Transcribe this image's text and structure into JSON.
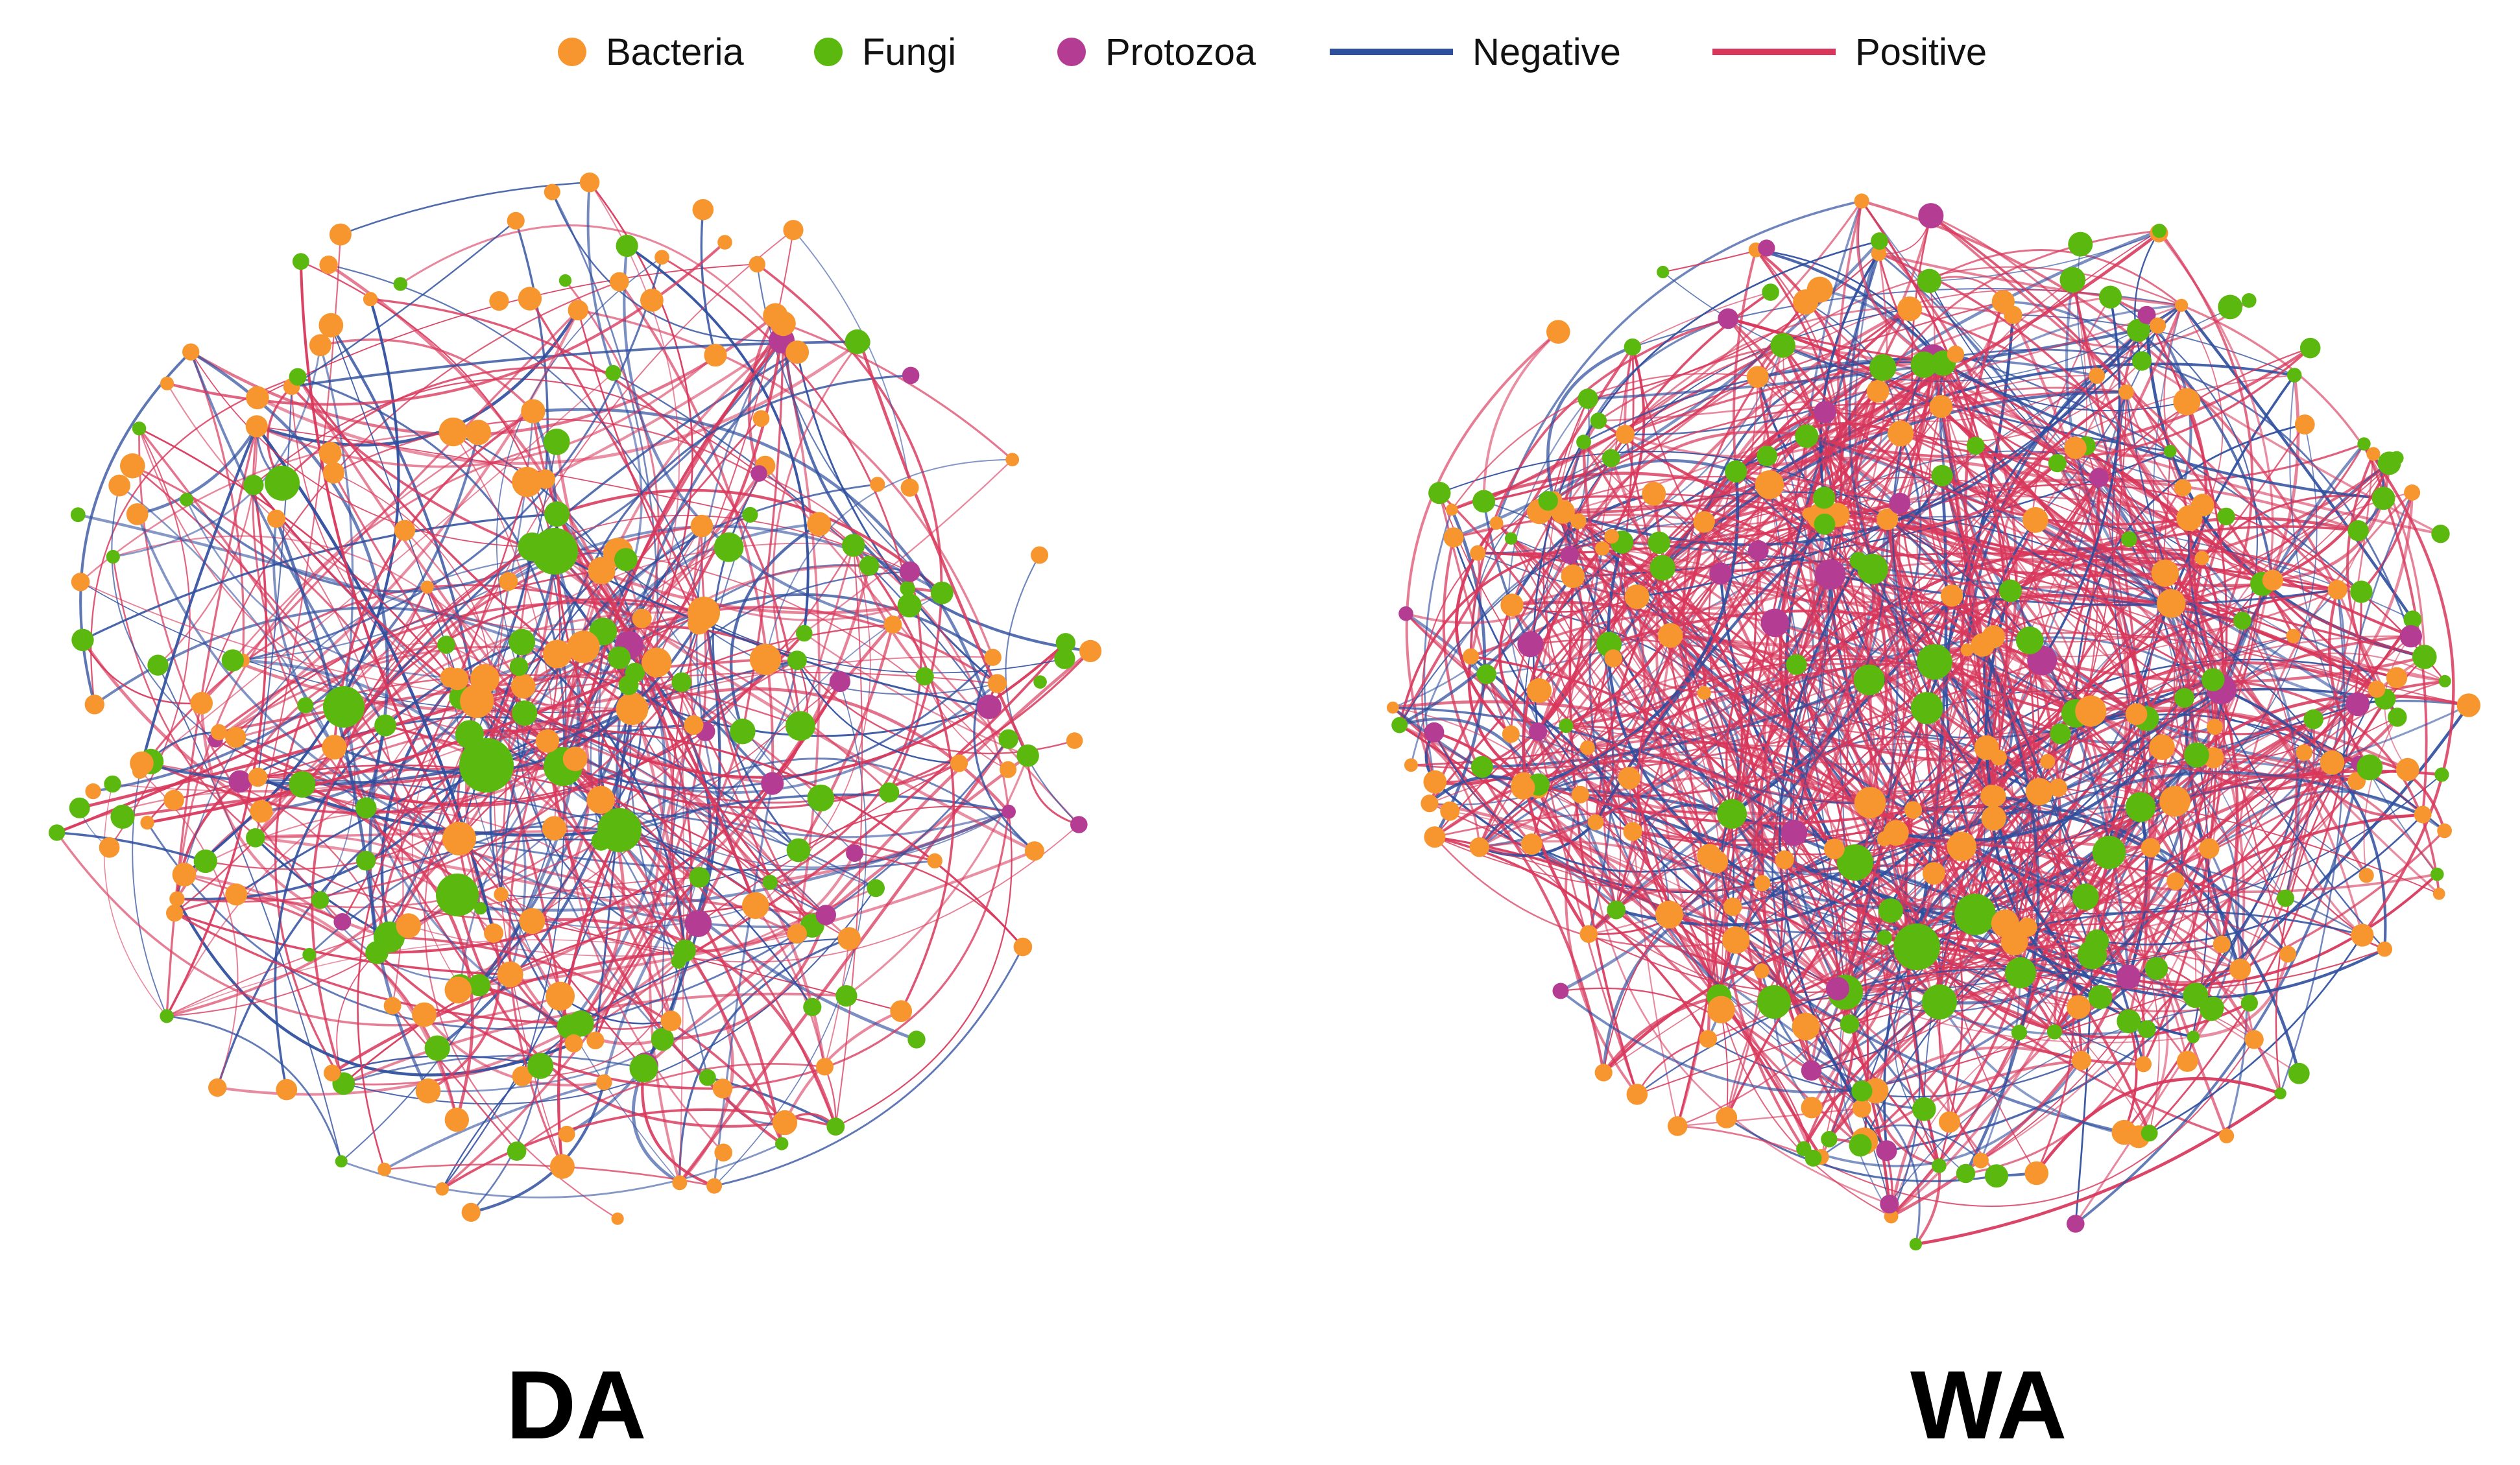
{
  "legend": {
    "node_types": [
      {
        "label": "Bacteria",
        "color": "#F7962F"
      },
      {
        "label": "Fungi",
        "color": "#5BB80E"
      },
      {
        "label": "Protozoa",
        "color": "#B43C92"
      }
    ],
    "edge_types": [
      {
        "label": "Negative",
        "color": "#2E4E9E"
      },
      {
        "label": "Positive",
        "color": "#D8375B"
      }
    ]
  },
  "panels": [
    {
      "label": "DA"
    },
    {
      "label": "WA"
    }
  ]
}
